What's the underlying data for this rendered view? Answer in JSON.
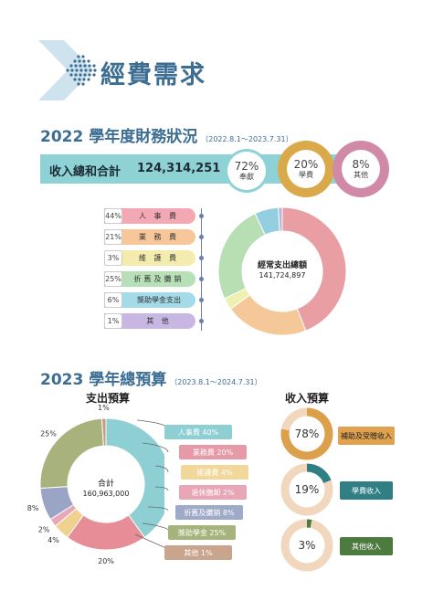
{
  "header": {
    "title": "經費需求"
  },
  "section_2022": {
    "title": "2022 學年度財務狀況",
    "range": "（2022.8.1～2023.7.31）",
    "income_label": "收入總和合計",
    "income_amount": "124,314,251",
    "sources": [
      {
        "pct": "72%",
        "label": "奉獻",
        "value": 72,
        "color": "#8fd2d6"
      },
      {
        "pct": "20%",
        "label": "學費",
        "value": 20,
        "color": "#d9a94a"
      },
      {
        "pct": "8%",
        "label": "其他",
        "value": 8,
        "color": "#d08aa8"
      }
    ],
    "categories": [
      {
        "pct": "44%",
        "name": "人 事 費",
        "color": "#f3a8b3"
      },
      {
        "pct": "21%",
        "name": "業 務 費",
        "color": "#f7c79a"
      },
      {
        "pct": "3%",
        "name": "維 護 費",
        "color": "#f4ecae"
      },
      {
        "pct": "25%",
        "name": "折舊及攤銷",
        "color": "#b7e0b6"
      },
      {
        "pct": "6%",
        "name": "獎助學金支出",
        "color": "#a3dbe9"
      },
      {
        "pct": "1%",
        "name": "其 他",
        "color": "#c8b7e2"
      }
    ],
    "donut_center_label": "經常支出總額",
    "donut_center_value": "141,724,897"
  },
  "section_2023": {
    "title": "2023 學年總預算",
    "range": "（2023.8.1～2024.7.31）",
    "expense_title": "支出預算",
    "revenue_title": "收入預算",
    "expense_center_label": "合計",
    "expense_center_value": "160,963,000",
    "expense_labels": [
      {
        "text": "人事費 40%",
        "color": "#8dcfd3"
      },
      {
        "text": "業務費 20%",
        "color": "#e69aa7"
      },
      {
        "text": "維護費 4%",
        "color": "#f2d79a"
      },
      {
        "text": "退休撫卹 2%",
        "color": "#e8a6b6"
      },
      {
        "text": "折舊及攤銷 8%",
        "color": "#9fa9c8"
      },
      {
        "text": "獎助學金 25%",
        "color": "#a6b37a"
      },
      {
        "text": "其他 1%",
        "color": "#c9a58d"
      }
    ],
    "revenue": [
      {
        "pct": "78%",
        "value": 78,
        "label": "補助及受贈收入",
        "color": "#dca04b",
        "track": "#f1d7bd"
      },
      {
        "pct": "19%",
        "value": 19,
        "label": "學費收入",
        "color": "#2f7f85",
        "track": "#f1d7bd"
      },
      {
        "pct": "3%",
        "value": 3,
        "label": "其他收入",
        "color": "#4d7a3f",
        "track": "#f1d7bd"
      }
    ]
  },
  "chart_data": [
    {
      "type": "pie",
      "title": "",
      "categories": [
        "人事費",
        "業務費",
        "維護費",
        "折舊及攤銷",
        "獎助學金支出",
        "其他"
      ],
      "values": [
        44,
        21,
        3,
        25,
        6,
        1
      ],
      "colors": [
        "#e99ea3",
        "#f5c89a",
        "#eef0b0",
        "#b8dfb3",
        "#93cfe0",
        "#b7b5d9"
      ],
      "donut_label": "經常支出總額 141,724,897"
    },
    {
      "type": "pie",
      "title": "支出預算",
      "categories": [
        "人事費",
        "業務費",
        "維護費",
        "退休撫卹",
        "折舊及攤銷",
        "獎助學金",
        "其他"
      ],
      "values": [
        40,
        20,
        4,
        2,
        8,
        25,
        1
      ],
      "labels": [
        "40%",
        "20%",
        "4%",
        "2%",
        "8%",
        "25%",
        "1%"
      ],
      "colors": [
        "#8dcfd3",
        "#e68d98",
        "#f0d28e",
        "#e8a6b6",
        "#9aa4c4",
        "#a8b27c",
        "#c69a82"
      ]
    },
    {
      "type": "pie",
      "title": "收入預算",
      "categories": [
        "補助及受贈收入",
        "學費收入",
        "其他收入"
      ],
      "values": [
        78,
        19,
        3
      ]
    }
  ]
}
